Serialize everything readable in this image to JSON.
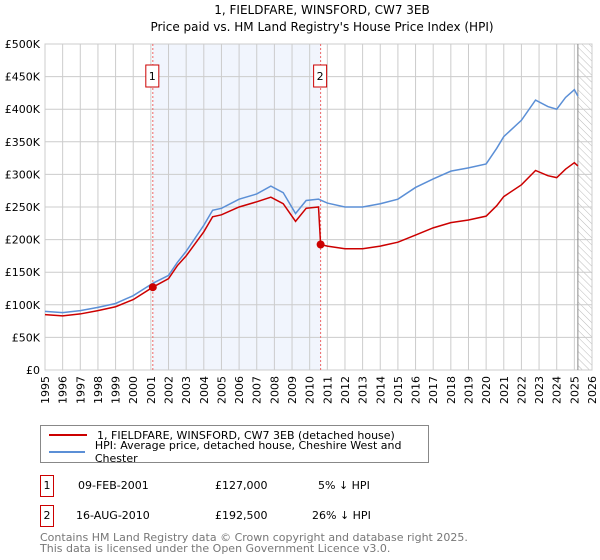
{
  "chart_data": {
    "type": "line",
    "title": "1, FIELDFARE, WINSFORD, CW7 3EB",
    "subtitle": "Price paid vs. HM Land Registry's House Price Index (HPI)",
    "xlim": [
      1995,
      2026
    ],
    "ylim": [
      0,
      500000
    ],
    "grid": true,
    "x_ticks": [
      "1995",
      "1996",
      "1997",
      "1998",
      "1999",
      "2000",
      "2001",
      "2002",
      "2003",
      "2004",
      "2005",
      "2006",
      "2007",
      "2008",
      "2009",
      "2010",
      "2011",
      "2012",
      "2013",
      "2014",
      "2015",
      "2016",
      "2017",
      "2018",
      "2019",
      "2020",
      "2021",
      "2022",
      "2023",
      "2024",
      "2025",
      "2026"
    ],
    "y_ticks": [
      {
        "v": 0,
        "label": "£0"
      },
      {
        "v": 50000,
        "label": "£50K"
      },
      {
        "v": 100000,
        "label": "£100K"
      },
      {
        "v": 150000,
        "label": "£150K"
      },
      {
        "v": 200000,
        "label": "£200K"
      },
      {
        "v": 250000,
        "label": "£250K"
      },
      {
        "v": 300000,
        "label": "£300K"
      },
      {
        "v": 350000,
        "label": "£350K"
      },
      {
        "v": 400000,
        "label": "£400K"
      },
      {
        "v": 450000,
        "label": "£450K"
      },
      {
        "v": 500000,
        "label": "£500K"
      }
    ],
    "series": [
      {
        "name": "1, FIELDFARE, WINSFORD, CW7 3EB (detached house)",
        "color": "#cc0000",
        "x": [
          1995,
          1996,
          1997,
          1998,
          1999,
          2000,
          2001.11,
          2002,
          2002.5,
          2003,
          2004,
          2004.5,
          2005,
          2006,
          2007,
          2007.8,
          2008.5,
          2009.2,
          2009.8,
          2010.5,
          2010.62,
          2011,
          2012,
          2013,
          2014,
          2015,
          2016,
          2017,
          2018,
          2019,
          2020,
          2020.6,
          2021,
          2022,
          2022.8,
          2023.5,
          2024,
          2024.5,
          2025,
          2025.2
        ],
        "y": [
          85000,
          83000,
          86000,
          91000,
          97000,
          108000,
          127000,
          140000,
          160000,
          175000,
          212000,
          235000,
          238000,
          250000,
          258000,
          265000,
          255000,
          228000,
          248000,
          250000,
          192500,
          190000,
          186000,
          186000,
          190000,
          196000,
          207000,
          218000,
          226000,
          230000,
          236000,
          252000,
          266000,
          284000,
          306000,
          298000,
          295000,
          308000,
          318000,
          313000
        ]
      },
      {
        "name": "HPI: Average price, detached house, Cheshire West and Chester",
        "color": "#5b8fd6",
        "x": [
          1995,
          1996,
          1997,
          1998,
          1999,
          2000,
          2001.11,
          2002,
          2002.5,
          2003,
          2004,
          2004.5,
          2005,
          2006,
          2007,
          2007.8,
          2008.5,
          2009.2,
          2009.8,
          2010.5,
          2011,
          2012,
          2013,
          2014,
          2015,
          2016,
          2017,
          2018,
          2019,
          2020,
          2020.6,
          2021,
          2022,
          2022.8,
          2023.5,
          2024,
          2024.5,
          2025,
          2025.2
        ],
        "y": [
          90000,
          88000,
          91000,
          96000,
          102000,
          114000,
          133000,
          145000,
          165000,
          182000,
          222000,
          245000,
          248000,
          262000,
          270000,
          282000,
          272000,
          240000,
          260000,
          262000,
          256000,
          250000,
          250000,
          255000,
          262000,
          280000,
          293000,
          305000,
          310000,
          316000,
          340000,
          358000,
          383000,
          414000,
          404000,
          400000,
          418000,
          430000,
          420000
        ]
      }
    ],
    "sales": [
      {
        "id": "1",
        "x": 2001.11,
        "y": 127000
      },
      {
        "id": "2",
        "x": 2010.62,
        "y": 192500
      }
    ],
    "forecast_start": 2025.2
  },
  "legend": {
    "items": [
      "1, FIELDFARE, WINSFORD, CW7 3EB (detached house)",
      "HPI: Average price, detached house, Cheshire West and Chester"
    ]
  },
  "table": [
    {
      "num": "1",
      "date": "09-FEB-2001",
      "price": "£127,000",
      "hpi": "5% ↓ HPI"
    },
    {
      "num": "2",
      "date": "16-AUG-2010",
      "price": "£192,500",
      "hpi": "26% ↓ HPI"
    }
  ],
  "footer": [
    "Contains HM Land Registry data © Crown copyright and database right 2025.",
    "This data is licensed under the Open Government Licence v3.0."
  ]
}
